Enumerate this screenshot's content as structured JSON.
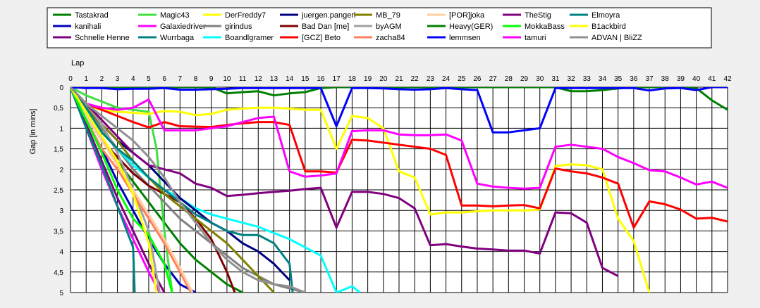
{
  "chart_data": {
    "type": "line",
    "xlabel": "Lap",
    "ylabel": "Gap [in mins]",
    "xlim": [
      0,
      42
    ],
    "ylim": [
      0,
      5
    ],
    "y_inverted": true,
    "grid": true,
    "legend_position": "top",
    "x_ticks": [
      "0",
      "1",
      "2",
      "3",
      "4",
      "5",
      "6",
      "7",
      "8",
      "9",
      "10",
      "11",
      "12",
      "13",
      "14",
      "15",
      "16",
      "17",
      "18",
      "19",
      "20",
      "21",
      "22",
      "23",
      "24",
      "25",
      "26",
      "27",
      "28",
      "29",
      "30",
      "31",
      "32",
      "33",
      "34",
      "35",
      "36",
      "37",
      "38",
      "39",
      "40",
      "41",
      "42"
    ],
    "y_ticks": [
      "0",
      "0,5",
      "1",
      "1,5",
      "2",
      "2,5",
      "3",
      "3,5",
      "4",
      "4,5",
      "5"
    ],
    "series": [
      {
        "name": "Tastakrad",
        "color": "#008000",
        "x": [
          0,
          1,
          2,
          3,
          4,
          5,
          6,
          7,
          8,
          9,
          10,
          11
        ],
        "y": [
          0,
          0.7,
          1.3,
          1.8,
          2.3,
          2.8,
          3.3,
          3.8,
          4.2,
          4.5,
          4.8,
          5.0
        ]
      },
      {
        "name": "kanihali",
        "color": "#0000c0",
        "x": [
          0,
          1,
          2,
          3,
          4,
          5,
          6,
          7,
          8
        ],
        "y": [
          0,
          0.8,
          1.5,
          2.3,
          3.0,
          3.7,
          4.3,
          4.8,
          5.0
        ]
      },
      {
        "name": "Schnelle Henne",
        "color": "#800080",
        "x": [
          0,
          1,
          2,
          3,
          4,
          5,
          6
        ],
        "y": [
          0,
          0.9,
          1.8,
          2.7,
          3.5,
          4.3,
          5.0
        ]
      },
      {
        "name": "Magic43",
        "color": "#40e040",
        "x": [
          0,
          1,
          2,
          3,
          4,
          5,
          5.5,
          6,
          6.5
        ],
        "y": [
          0,
          0.2,
          0.35,
          0.5,
          0.55,
          0.6,
          1.5,
          3.5,
          5.0
        ]
      },
      {
        "name": "Galaxiedriver",
        "color": "#ff00ff",
        "x": [
          0,
          1,
          2,
          3,
          4,
          5,
          5.7
        ],
        "y": [
          0,
          1.0,
          2.0,
          2.9,
          3.7,
          4.5,
          5.0
        ]
      },
      {
        "name": "Wurrbaga",
        "color": "#008080",
        "x": [
          0,
          1,
          2,
          3,
          4,
          4.1
        ],
        "y": [
          0,
          1.0,
          1.9,
          2.9,
          3.9,
          5.0
        ]
      },
      {
        "name": "DerFreddy7",
        "color": "#ffff00",
        "x": [
          0,
          1,
          2,
          3,
          4,
          5,
          6,
          7,
          8,
          9,
          10,
          11,
          12,
          13,
          14,
          15,
          16,
          17,
          18,
          19,
          20,
          21,
          22,
          23,
          24,
          25,
          26,
          27,
          28,
          29,
          30,
          31,
          32,
          33,
          34,
          35,
          36,
          37
        ],
        "y": [
          0,
          0.45,
          0.55,
          0.6,
          0.62,
          0.65,
          0.58,
          0.6,
          0.68,
          0.65,
          0.55,
          0.52,
          0.5,
          0.5,
          0.52,
          0.55,
          0.55,
          1.5,
          0.7,
          0.75,
          1.0,
          2.05,
          2.2,
          3.1,
          3.05,
          3.05,
          3.02,
          3.0,
          3.0,
          3.0,
          2.98,
          1.92,
          1.88,
          1.9,
          2.0,
          3.2,
          3.75,
          5.0
        ]
      },
      {
        "name": "girindus",
        "color": "#808080",
        "x": [
          0,
          1,
          2,
          3,
          4,
          5,
          6,
          7,
          8,
          9,
          10,
          11,
          12,
          13,
          14,
          15
        ],
        "y": [
          0,
          0.5,
          1.0,
          1.5,
          2.0,
          2.4,
          2.8,
          3.2,
          3.5,
          3.8,
          4.1,
          4.4,
          4.6,
          4.8,
          4.9,
          5.0
        ]
      },
      {
        "name": "Boandlgramer",
        "color": "#00ffff",
        "x": [
          0,
          1,
          2,
          3,
          4,
          5,
          6,
          7,
          8,
          9,
          10,
          11,
          12,
          13,
          14,
          15,
          16,
          17,
          18,
          18.5
        ],
        "y": [
          0,
          0.55,
          1.1,
          1.5,
          1.9,
          2.2,
          2.5,
          2.7,
          2.95,
          3.1,
          3.2,
          3.3,
          3.4,
          3.55,
          3.7,
          3.9,
          4.1,
          5.0,
          4.85,
          5.0
        ]
      },
      {
        "name": "juergen.pangerl",
        "color": "#000080",
        "x": [
          0,
          1,
          2,
          3,
          4,
          5,
          6,
          7,
          8,
          9,
          10,
          11,
          12,
          13,
          14
        ],
        "y": [
          0,
          0.5,
          0.9,
          1.3,
          1.6,
          1.9,
          2.3,
          2.7,
          3.0,
          3.3,
          3.5,
          3.8,
          4.0,
          4.3,
          4.7
        ]
      },
      {
        "name": "Bad Dan [me]",
        "color": "#800000",
        "x": [
          0,
          1,
          2,
          3,
          4,
          5,
          6,
          7,
          8,
          9,
          10,
          10.5
        ],
        "y": [
          0,
          0.7,
          1.3,
          1.7,
          2.1,
          2.4,
          2.6,
          2.8,
          3.2,
          3.7,
          4.5,
          5.0
        ]
      },
      {
        "name": "[GCZ] Beto",
        "color": "#ff0000",
        "x": [
          0,
          1,
          2,
          3,
          4,
          5,
          6,
          7,
          8,
          9,
          10,
          11,
          12,
          13,
          14,
          15,
          16,
          17,
          18,
          19,
          20,
          21,
          22,
          23,
          24,
          25,
          26,
          27,
          28,
          29,
          30,
          31,
          32,
          33,
          34,
          35,
          36,
          37,
          38,
          39,
          40,
          41,
          42
        ],
        "y": [
          0,
          0.4,
          0.55,
          0.7,
          0.85,
          0.98,
          0.85,
          0.95,
          0.96,
          0.97,
          0.92,
          0.88,
          0.85,
          0.85,
          0.92,
          2.05,
          2.05,
          2.08,
          1.28,
          1.3,
          1.35,
          1.4,
          1.45,
          1.5,
          1.65,
          2.88,
          2.88,
          2.9,
          2.88,
          2.87,
          2.95,
          1.98,
          2.05,
          2.1,
          2.2,
          2.35,
          3.42,
          2.78,
          2.85,
          2.98,
          3.2,
          3.18,
          3.27
        ]
      },
      {
        "name": "MB_79",
        "color": "#808000",
        "x": [
          0,
          1,
          2,
          3,
          4,
          5,
          6,
          7,
          8,
          9,
          10,
          11,
          12,
          13
        ],
        "y": [
          0,
          0.5,
          0.9,
          1.3,
          1.8,
          2.2,
          2.6,
          2.9,
          3.2,
          3.5,
          3.8,
          4.2,
          4.6,
          5.0
        ]
      },
      {
        "name": "byAGM",
        "color": "#a0a0a0",
        "x": [
          0,
          1,
          2,
          3,
          4,
          5,
          5.7
        ],
        "y": [
          0,
          0.4,
          0.9,
          1.6,
          2.5,
          3.5,
          5.0
        ]
      },
      {
        "name": "zacha84",
        "color": "#ff8060",
        "x": [
          0,
          1,
          2,
          3,
          4,
          5,
          6,
          7,
          7.7
        ],
        "y": [
          0,
          0.8,
          1.5,
          2.0,
          2.6,
          3.2,
          3.8,
          4.5,
          5.0
        ]
      },
      {
        "name": "[POR]joka",
        "color": "#ffd0a0",
        "x": [
          0,
          1,
          2,
          3,
          4,
          5,
          6,
          7,
          7.8
        ],
        "y": [
          0,
          0.7,
          1.3,
          1.9,
          2.5,
          3.1,
          3.7,
          4.4,
          5.0
        ]
      },
      {
        "name": "Heavy(GER)",
        "color": "#008000",
        "x": [
          0,
          1,
          2,
          3,
          4,
          5,
          6,
          7,
          8,
          9,
          10,
          11,
          12,
          13,
          14,
          15,
          16,
          17,
          18,
          19,
          20,
          21,
          22,
          23,
          24,
          25,
          26,
          27,
          28,
          29,
          30,
          31,
          32,
          33,
          34,
          35,
          36,
          37,
          38,
          39,
          40,
          41,
          42
        ],
        "y": [
          0,
          0,
          0,
          0,
          0,
          0,
          0,
          0,
          0,
          0,
          0.15,
          0.12,
          0.1,
          0.2,
          0.15,
          0.12,
          0.02,
          0,
          0,
          0,
          0,
          0,
          0,
          0,
          0,
          0,
          0,
          0,
          0,
          0,
          0,
          0,
          0.1,
          0.1,
          0.07,
          0.03,
          0,
          0,
          0,
          0,
          0.02,
          0.32,
          0.55
        ]
      },
      {
        "name": "lemmsen",
        "color": "#0000ff",
        "x": [
          0,
          1,
          2,
          3,
          4,
          5,
          6,
          7,
          8,
          9,
          10,
          11,
          12,
          13,
          14,
          15,
          16,
          17,
          18,
          19,
          20,
          21,
          22,
          23,
          24,
          25,
          26,
          27,
          28,
          29,
          30,
          31,
          32,
          33,
          34,
          35,
          36,
          37,
          38,
          39,
          40,
          41,
          42
        ],
        "y": [
          0,
          0.02,
          0.02,
          0.05,
          0.04,
          0.04,
          0.02,
          0.06,
          0.06,
          0.05,
          0.04,
          0.02,
          0.02,
          0.02,
          0.02,
          0.02,
          0.02,
          0.95,
          0.02,
          0.02,
          0.03,
          0.05,
          0.06,
          0.05,
          0.02,
          0.05,
          0.07,
          1.1,
          1.1,
          1.05,
          1.0,
          0.02,
          0.02,
          0.02,
          0.02,
          0.02,
          0.02,
          0.08,
          0.03,
          0.02,
          0.07,
          0,
          0
        ]
      },
      {
        "name": "TheStig",
        "color": "#800080",
        "x": [
          0,
          1,
          2,
          3,
          4,
          5,
          6,
          7,
          8,
          9,
          10,
          11,
          12,
          13,
          14,
          15,
          16,
          17,
          18,
          19,
          20,
          21,
          22,
          23,
          24,
          25,
          26,
          27,
          28,
          29,
          30,
          31,
          32,
          33,
          34,
          35
        ],
        "y": [
          0,
          0.4,
          0.8,
          1.2,
          1.6,
          1.9,
          2.0,
          2.1,
          2.35,
          2.45,
          2.65,
          2.62,
          2.58,
          2.55,
          2.52,
          2.48,
          2.45,
          3.42,
          2.55,
          2.55,
          2.6,
          2.7,
          2.95,
          3.85,
          3.82,
          3.88,
          3.93,
          3.95,
          3.98,
          3.98,
          4.05,
          3.05,
          3.07,
          3.3,
          4.4,
          4.6
        ]
      },
      {
        "name": "MokkaBass",
        "color": "#00ff00",
        "x": [
          0,
          1,
          2,
          3,
          4,
          5,
          6,
          6.5
        ],
        "y": [
          0,
          0.8,
          1.6,
          2.5,
          3.2,
          3.6,
          4.3,
          5.0
        ]
      },
      {
        "name": "tamuri",
        "color": "#ff00ff",
        "x": [
          0,
          1,
          2,
          3,
          4,
          5,
          6,
          7,
          8,
          9,
          10,
          11,
          12,
          13,
          14,
          15,
          16,
          17,
          18,
          19,
          20,
          21,
          22,
          23,
          24,
          25,
          26,
          27,
          28,
          29,
          30,
          31,
          32,
          33,
          34,
          35,
          36,
          37,
          38,
          39,
          40,
          41,
          42
        ],
        "y": [
          0,
          0.4,
          0.5,
          0.55,
          0.5,
          0.3,
          1.05,
          1.05,
          1.05,
          1.0,
          0.95,
          0.85,
          0.75,
          0.72,
          2.05,
          2.18,
          2.15,
          2.1,
          1.07,
          1.05,
          1.05,
          1.15,
          1.17,
          1.17,
          1.15,
          1.3,
          2.35,
          2.42,
          2.45,
          2.47,
          2.45,
          1.45,
          1.4,
          1.45,
          1.5,
          1.7,
          1.85,
          2.02,
          2.05,
          2.2,
          2.37,
          2.3,
          2.45
        ]
      },
      {
        "name": "Elmoyra",
        "color": "#008080",
        "x": [
          0,
          1,
          2,
          3,
          4,
          5,
          6,
          7,
          8,
          9,
          10,
          11,
          12,
          13,
          14,
          14.2
        ],
        "y": [
          0,
          0.5,
          1.1,
          1.5,
          1.8,
          2.2,
          2.5,
          2.8,
          3.1,
          3.3,
          3.5,
          3.6,
          3.6,
          3.8,
          4.3,
          5.0
        ]
      },
      {
        "name": "B1ackbird",
        "color": "#ffff00",
        "x": [
          0,
          1,
          2,
          3,
          4,
          5,
          5.5
        ],
        "y": [
          0,
          0.6,
          1.2,
          1.8,
          2.6,
          3.8,
          5.0
        ]
      },
      {
        "name": "ADVAN | BliZZ",
        "color": "#909090",
        "x": [
          0,
          1,
          2,
          3,
          4,
          5,
          6,
          7,
          8,
          9,
          10,
          11,
          12,
          13,
          14,
          15
        ],
        "y": [
          0,
          0.4,
          0.7,
          1.0,
          1.3,
          1.7,
          2.2,
          2.8,
          3.3,
          3.8,
          4.2,
          4.5,
          4.7,
          4.8,
          4.85,
          5.0
        ]
      }
    ]
  }
}
